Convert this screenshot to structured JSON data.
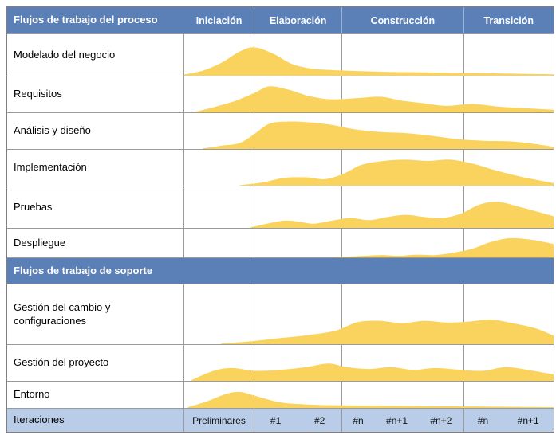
{
  "colors": {
    "header_blue": "#5b80b8",
    "iterations_blue": "#b9cde8",
    "hump_yellow": "#fad35f",
    "grid_gray": "#9a9a9a",
    "border_gray": "#7e7e7e"
  },
  "header": {
    "process_label": "Flujos de trabajo del proceso",
    "phases": [
      {
        "label": "Iniciación"
      },
      {
        "label": "Elaboración"
      },
      {
        "label": "Construcción"
      },
      {
        "label": "Transición"
      }
    ]
  },
  "process_rows": [
    {
      "label": "Modelado del negocio",
      "h": 0.7,
      "profile": [
        [
          0.0,
          0.04
        ],
        [
          0.05,
          0.18
        ],
        [
          0.1,
          0.45
        ],
        [
          0.15,
          0.85
        ],
        [
          0.19,
          1.0
        ],
        [
          0.24,
          0.78
        ],
        [
          0.29,
          0.42
        ],
        [
          0.34,
          0.26
        ],
        [
          0.4,
          0.2
        ],
        [
          0.48,
          0.16
        ],
        [
          0.56,
          0.13
        ],
        [
          0.64,
          0.12
        ],
        [
          0.72,
          0.1
        ],
        [
          0.8,
          0.09
        ],
        [
          0.9,
          0.07
        ],
        [
          1.0,
          0.05
        ]
      ]
    },
    {
      "label": "Requisitos",
      "h": 0.74,
      "profile": [
        [
          0.03,
          0.02
        ],
        [
          0.08,
          0.2
        ],
        [
          0.14,
          0.45
        ],
        [
          0.19,
          0.75
        ],
        [
          0.23,
          1.0
        ],
        [
          0.28,
          0.88
        ],
        [
          0.34,
          0.62
        ],
        [
          0.4,
          0.5
        ],
        [
          0.47,
          0.55
        ],
        [
          0.53,
          0.6
        ],
        [
          0.59,
          0.45
        ],
        [
          0.65,
          0.35
        ],
        [
          0.71,
          0.25
        ],
        [
          0.78,
          0.32
        ],
        [
          0.85,
          0.22
        ],
        [
          0.92,
          0.16
        ],
        [
          1.0,
          0.1
        ]
      ]
    },
    {
      "label": "Análisis y diseño",
      "h": 0.78,
      "profile": [
        [
          0.05,
          0.02
        ],
        [
          0.1,
          0.12
        ],
        [
          0.15,
          0.22
        ],
        [
          0.19,
          0.55
        ],
        [
          0.23,
          0.92
        ],
        [
          0.28,
          1.0
        ],
        [
          0.34,
          0.97
        ],
        [
          0.4,
          0.88
        ],
        [
          0.46,
          0.72
        ],
        [
          0.53,
          0.62
        ],
        [
          0.6,
          0.58
        ],
        [
          0.67,
          0.48
        ],
        [
          0.74,
          0.36
        ],
        [
          0.81,
          0.3
        ],
        [
          0.88,
          0.28
        ],
        [
          0.94,
          0.2
        ],
        [
          1.0,
          0.08
        ]
      ]
    },
    {
      "label": "Implementación",
      "h": 0.74,
      "profile": [
        [
          0.15,
          0.02
        ],
        [
          0.21,
          0.12
        ],
        [
          0.27,
          0.3
        ],
        [
          0.33,
          0.32
        ],
        [
          0.38,
          0.25
        ],
        [
          0.43,
          0.45
        ],
        [
          0.48,
          0.8
        ],
        [
          0.54,
          0.95
        ],
        [
          0.6,
          1.0
        ],
        [
          0.66,
          0.95
        ],
        [
          0.72,
          1.0
        ],
        [
          0.78,
          0.85
        ],
        [
          0.84,
          0.6
        ],
        [
          0.91,
          0.35
        ],
        [
          1.0,
          0.1
        ]
      ]
    },
    {
      "label": "Pruebas",
      "h": 0.64,
      "profile": [
        [
          0.18,
          0.02
        ],
        [
          0.23,
          0.18
        ],
        [
          0.27,
          0.28
        ],
        [
          0.31,
          0.24
        ],
        [
          0.35,
          0.16
        ],
        [
          0.4,
          0.28
        ],
        [
          0.45,
          0.38
        ],
        [
          0.5,
          0.3
        ],
        [
          0.55,
          0.42
        ],
        [
          0.6,
          0.5
        ],
        [
          0.65,
          0.42
        ],
        [
          0.7,
          0.38
        ],
        [
          0.75,
          0.55
        ],
        [
          0.8,
          0.9
        ],
        [
          0.85,
          1.0
        ],
        [
          0.91,
          0.8
        ],
        [
          1.0,
          0.45
        ]
      ]
    },
    {
      "label": "Despliegue",
      "h": 0.68,
      "profile": [
        [
          0.4,
          0.01
        ],
        [
          0.47,
          0.06
        ],
        [
          0.53,
          0.12
        ],
        [
          0.58,
          0.08
        ],
        [
          0.63,
          0.14
        ],
        [
          0.68,
          0.12
        ],
        [
          0.73,
          0.25
        ],
        [
          0.78,
          0.45
        ],
        [
          0.83,
          0.8
        ],
        [
          0.88,
          1.0
        ],
        [
          0.94,
          0.92
        ],
        [
          1.0,
          0.7
        ]
      ]
    }
  ],
  "support_header": "Flujos de trabajo de soporte",
  "support_rows": [
    {
      "label": "Gestión del cambio y configuraciones",
      "h": 0.42,
      "profile": [
        [
          0.1,
          0.03
        ],
        [
          0.18,
          0.12
        ],
        [
          0.26,
          0.25
        ],
        [
          0.34,
          0.38
        ],
        [
          0.41,
          0.55
        ],
        [
          0.47,
          0.9
        ],
        [
          0.53,
          0.95
        ],
        [
          0.59,
          0.85
        ],
        [
          0.65,
          0.95
        ],
        [
          0.71,
          0.88
        ],
        [
          0.77,
          0.92
        ],
        [
          0.83,
          1.0
        ],
        [
          0.89,
          0.85
        ],
        [
          0.95,
          0.65
        ],
        [
          1.0,
          0.35
        ]
      ]
    },
    {
      "label": "Gestión del proyecto",
      "h": 0.52,
      "profile": [
        [
          0.02,
          0.05
        ],
        [
          0.08,
          0.55
        ],
        [
          0.13,
          0.7
        ],
        [
          0.19,
          0.55
        ],
        [
          0.26,
          0.6
        ],
        [
          0.33,
          0.75
        ],
        [
          0.39,
          0.95
        ],
        [
          0.44,
          0.75
        ],
        [
          0.5,
          0.65
        ],
        [
          0.56,
          0.75
        ],
        [
          0.62,
          0.6
        ],
        [
          0.68,
          0.7
        ],
        [
          0.75,
          0.6
        ],
        [
          0.81,
          0.55
        ],
        [
          0.87,
          0.75
        ],
        [
          0.93,
          0.6
        ],
        [
          1.0,
          0.35
        ]
      ]
    },
    {
      "label": "Entorno",
      "h": 0.62,
      "profile": [
        [
          0.01,
          0.05
        ],
        [
          0.06,
          0.4
        ],
        [
          0.11,
          0.85
        ],
        [
          0.15,
          1.0
        ],
        [
          0.2,
          0.7
        ],
        [
          0.26,
          0.35
        ],
        [
          0.33,
          0.22
        ],
        [
          0.42,
          0.16
        ],
        [
          0.52,
          0.14
        ],
        [
          0.62,
          0.12
        ],
        [
          0.72,
          0.1
        ],
        [
          0.85,
          0.08
        ],
        [
          1.0,
          0.05
        ]
      ]
    }
  ],
  "iterations": {
    "label": "Iteraciones",
    "groups": [
      [
        "Preliminares"
      ],
      [
        "#1",
        "#2"
      ],
      [
        "#n",
        "#n+1",
        "#n+2"
      ],
      [
        "#n",
        "#n+1"
      ]
    ]
  }
}
